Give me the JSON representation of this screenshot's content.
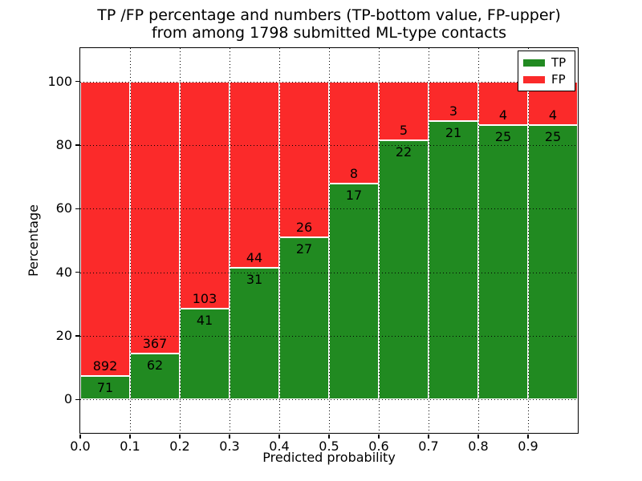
{
  "chart_data": {
    "type": "bar",
    "stacked": true,
    "title_line1": "TP /FP percentage and numbers (TP-bottom value, FP-upper)",
    "title_line2": "from among 1798 submitted ML-type contacts",
    "xlabel": "Predicted probability",
    "ylabel": "Percentage",
    "total_contacts": 1798,
    "categories": [
      "0.0-0.1",
      "0.1-0.2",
      "0.2-0.3",
      "0.3-0.4",
      "0.4-0.5",
      "0.5-0.6",
      "0.6-0.7",
      "0.7-0.8",
      "0.8-0.9",
      "0.9-1.0"
    ],
    "series": [
      {
        "name": "TP",
        "color": "#218a21",
        "counts": [
          71,
          62,
          41,
          31,
          27,
          17,
          22,
          21,
          25,
          25
        ]
      },
      {
        "name": "FP",
        "color": "#fb2a2a",
        "counts": [
          892,
          367,
          103,
          44,
          26,
          8,
          5,
          3,
          4,
          4
        ]
      }
    ],
    "bar_note": "each bar normalized to 100%; green TP share = count/(TP+FP)",
    "xticks": [
      "0.0",
      "0.1",
      "0.2",
      "0.3",
      "0.4",
      "0.5",
      "0.6",
      "0.7",
      "0.8",
      "0.9"
    ],
    "yticks": [
      0,
      20,
      40,
      60,
      80,
      100
    ],
    "xlim": [
      0.0,
      1.0
    ],
    "ylim": [
      -10.5,
      110.5
    ],
    "grid": "dotted black, drawn over bars",
    "legend_position": "upper right",
    "bar_edge_color": "#ffffff"
  }
}
